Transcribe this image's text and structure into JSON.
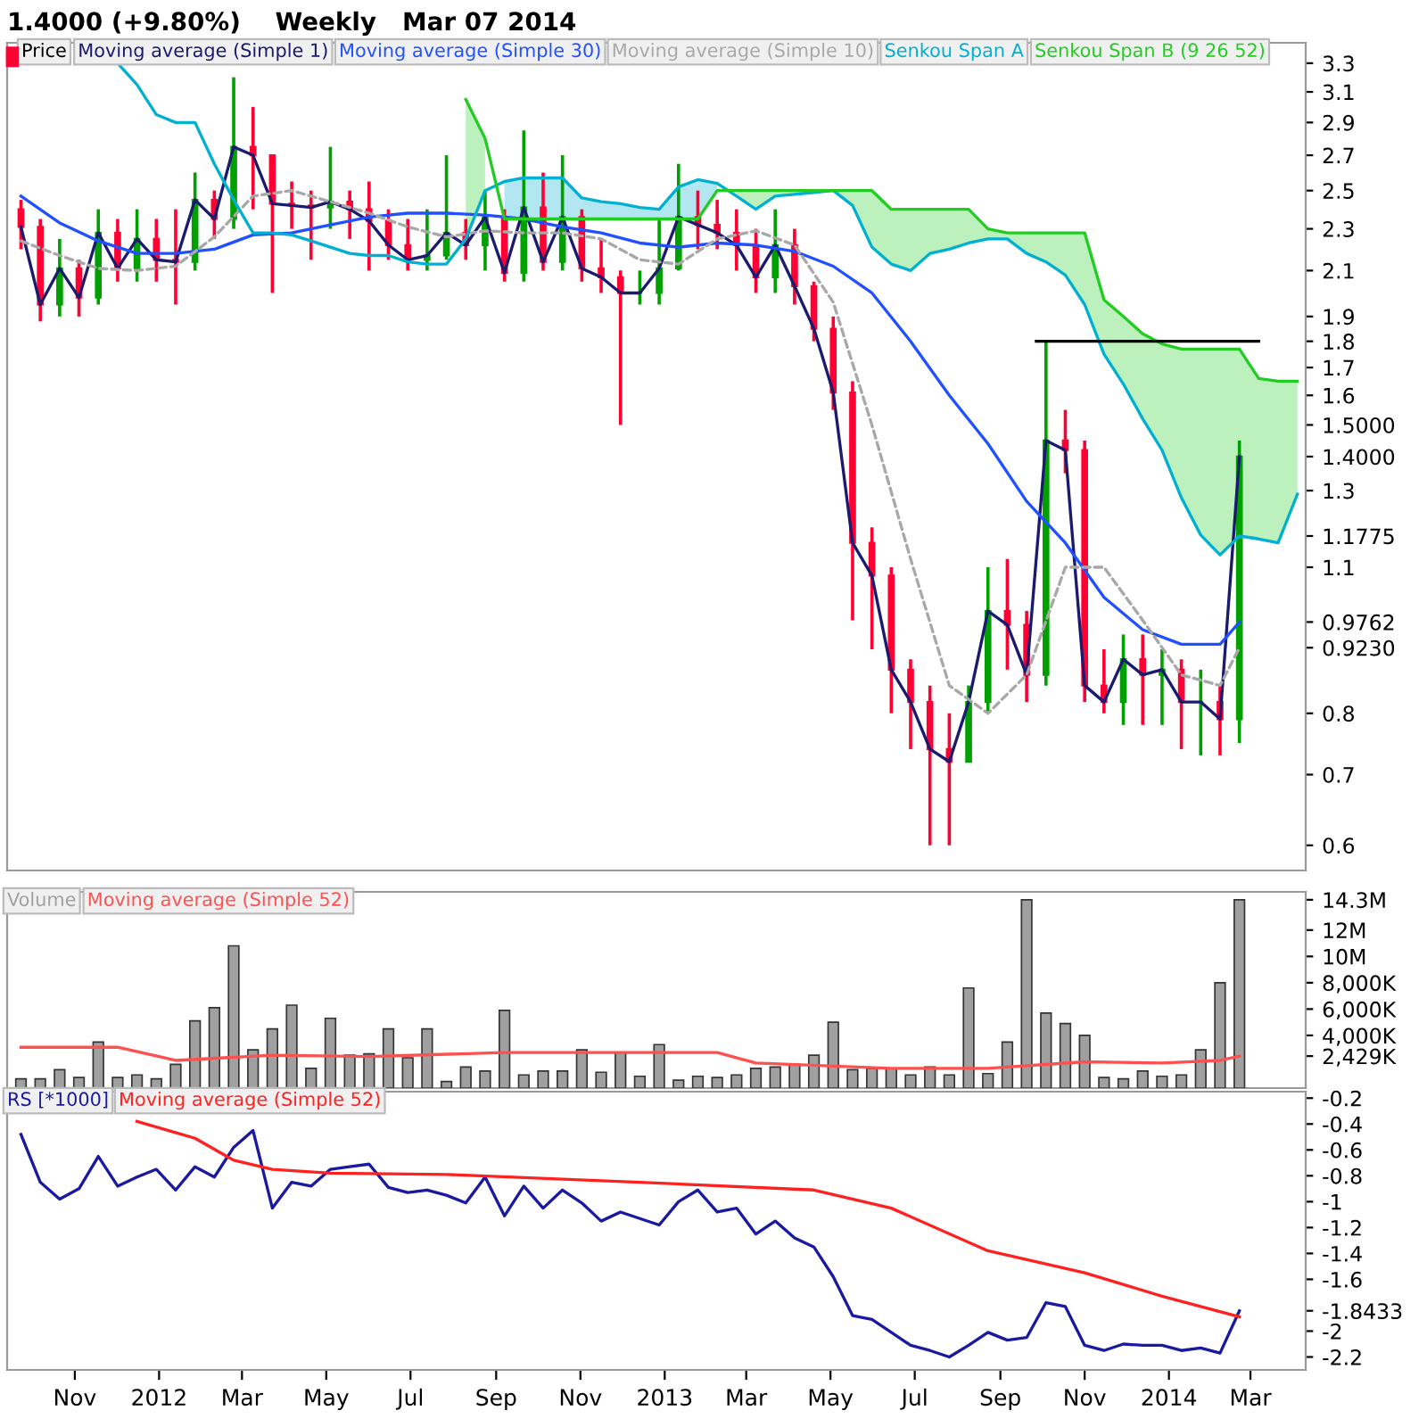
{
  "chart_data": [
    {
      "type": "candlestick",
      "title": "1.4000 (+9.80%)    Weekly   Mar 07 2014",
      "log": true,
      "legend": "top left",
      "tick_labels": "y",
      "x": [
        "2011-10-07",
        "2011-10-21",
        "2011-11-04",
        "2011-11-18",
        "2011-12-02",
        "2011-12-16",
        "2011-12-30",
        "2012-01-13",
        "2012-01-27",
        "2012-02-10",
        "2012-02-24",
        "2012-03-09",
        "2012-03-23",
        "2012-04-06",
        "2012-04-20",
        "2012-05-04",
        "2012-05-18",
        "2012-06-01",
        "2012-06-15",
        "2012-06-29",
        "2012-07-13",
        "2012-07-27",
        "2012-08-10",
        "2012-08-24",
        "2012-09-07",
        "2012-09-21",
        "2012-10-05",
        "2012-10-19",
        "2012-11-02",
        "2012-11-16",
        "2012-11-30",
        "2012-12-14",
        "2012-12-28",
        "2013-01-11",
        "2013-01-25",
        "2013-02-08",
        "2013-02-22",
        "2013-03-08",
        "2013-03-22",
        "2013-04-05",
        "2013-04-19",
        "2013-05-03",
        "2013-05-17",
        "2013-05-31",
        "2013-06-14",
        "2013-06-28",
        "2013-07-12",
        "2013-07-26",
        "2013-08-09",
        "2013-08-23",
        "2013-09-06",
        "2013-09-20",
        "2013-10-04",
        "2013-10-18",
        "2013-11-01",
        "2013-11-15",
        "2013-11-29",
        "2013-12-13",
        "2013-12-27",
        "2014-01-10",
        "2014-01-24",
        "2014-02-07",
        "2014-02-21",
        "2014-03-07"
      ],
      "series": [
        {
          "name": "Price",
          "type": "candlestick",
          "ohlc": [
            [
              2.4,
              2.45,
              2.2,
              2.31
            ],
            [
              2.31,
              2.35,
              1.88,
              1.95
            ],
            [
              1.95,
              2.25,
              1.9,
              2.11
            ],
            [
              2.11,
              2.15,
              1.9,
              1.98
            ],
            [
              1.98,
              2.4,
              1.95,
              2.28
            ],
            [
              2.28,
              2.35,
              2.05,
              2.11
            ],
            [
              2.11,
              2.4,
              2.05,
              2.25
            ],
            [
              2.25,
              2.35,
              2.05,
              2.15
            ],
            [
              2.15,
              2.4,
              1.95,
              2.14
            ],
            [
              2.14,
              2.6,
              2.1,
              2.45
            ],
            [
              2.45,
              2.5,
              2.25,
              2.35
            ],
            [
              2.35,
              3.2,
              2.3,
              2.75
            ],
            [
              2.75,
              3.0,
              2.4,
              2.7
            ],
            [
              2.7,
              2.7,
              2.0,
              2.43
            ],
            [
              2.43,
              2.55,
              2.3,
              2.42
            ],
            [
              2.42,
              2.5,
              2.15,
              2.41
            ],
            [
              2.41,
              2.75,
              2.3,
              2.44
            ],
            [
              2.44,
              2.5,
              2.25,
              2.4
            ],
            [
              2.4,
              2.55,
              2.1,
              2.34
            ],
            [
              2.34,
              2.4,
              2.15,
              2.22
            ],
            [
              2.22,
              2.35,
              2.1,
              2.15
            ],
            [
              2.15,
              2.4,
              2.1,
              2.17
            ],
            [
              2.17,
              2.7,
              2.15,
              2.28
            ],
            [
              2.28,
              2.35,
              2.15,
              2.22
            ],
            [
              2.22,
              2.5,
              2.1,
              2.36
            ],
            [
              2.36,
              2.4,
              2.05,
              2.09
            ],
            [
              2.09,
              2.85,
              2.05,
              2.41
            ],
            [
              2.41,
              2.6,
              2.1,
              2.14
            ],
            [
              2.14,
              2.7,
              2.1,
              2.36
            ],
            [
              2.36,
              2.4,
              2.05,
              2.11
            ],
            [
              2.11,
              2.25,
              2.0,
              2.07
            ],
            [
              2.07,
              2.1,
              1.5,
              2.0
            ],
            [
              2.0,
              2.1,
              1.95,
              2.0
            ],
            [
              2.0,
              2.35,
              1.95,
              2.11
            ],
            [
              2.11,
              2.65,
              2.1,
              2.36
            ],
            [
              2.36,
              2.5,
              2.2,
              2.32
            ],
            [
              2.32,
              2.45,
              2.2,
              2.28
            ],
            [
              2.28,
              2.4,
              2.1,
              2.22
            ],
            [
              2.22,
              2.3,
              2.0,
              2.07
            ],
            [
              2.07,
              2.4,
              2.0,
              2.22
            ],
            [
              2.22,
              2.3,
              1.95,
              2.03
            ],
            [
              2.03,
              2.05,
              1.8,
              1.85
            ],
            [
              1.85,
              1.9,
              1.55,
              1.61
            ],
            [
              1.61,
              1.65,
              0.98,
              1.16
            ],
            [
              1.16,
              1.2,
              0.92,
              1.08
            ],
            [
              1.08,
              1.1,
              0.8,
              0.88
            ],
            [
              0.88,
              0.9,
              0.74,
              0.82
            ],
            [
              0.82,
              0.85,
              0.6,
              0.74
            ],
            [
              0.74,
              0.8,
              0.6,
              0.72
            ],
            [
              0.72,
              0.85,
              0.72,
              0.82
            ],
            [
              0.82,
              1.1,
              0.8,
              1.0
            ],
            [
              1.0,
              1.12,
              0.88,
              0.97
            ],
            [
              0.97,
              1.0,
              0.82,
              0.87
            ],
            [
              0.87,
              1.8,
              0.85,
              1.45
            ],
            [
              1.45,
              1.55,
              1.35,
              1.42
            ],
            [
              1.42,
              1.45,
              0.82,
              0.85
            ],
            [
              0.85,
              0.92,
              0.8,
              0.82
            ],
            [
              0.82,
              0.95,
              0.78,
              0.9
            ],
            [
              0.9,
              0.95,
              0.78,
              0.87
            ],
            [
              0.87,
              0.92,
              0.78,
              0.88
            ],
            [
              0.88,
              0.9,
              0.74,
              0.82
            ],
            [
              0.82,
              0.88,
              0.73,
              0.82
            ],
            [
              0.82,
              0.85,
              0.73,
              0.79
            ],
            [
              0.79,
              1.45,
              0.75,
              1.4
            ]
          ],
          "colors": [
            "#ff0033",
            "#ff0033",
            "#00a000",
            "#ff0033",
            "#00a000",
            "#ff0033",
            "#00a000",
            "#ff0033",
            "#ff0033",
            "#00a000",
            "#ff0033",
            "#00a000",
            "#ff0033",
            "#ff0033",
            "#ff0033",
            "#ff0033",
            "#00a000",
            "#ff0033",
            "#ff0033",
            "#ff0033",
            "#ff0033",
            "#00a000",
            "#00a000",
            "#ff0033",
            "#00a000",
            "#ff0033",
            "#00a000",
            "#ff0033",
            "#00a000",
            "#ff0033",
            "#ff0033",
            "#ff0033",
            "#00a000",
            "#00a000",
            "#00a000",
            "#ff0033",
            "#ff0033",
            "#ff0033",
            "#ff0033",
            "#00a000",
            "#ff0033",
            "#ff0033",
            "#ff0033",
            "#ff0033",
            "#ff0033",
            "#ff0033",
            "#ff0033",
            "#ff0033",
            "#ff0033",
            "#00a000",
            "#00a000",
            "#ff0033",
            "#ff0033",
            "#00a000",
            "#ff0033",
            "#ff0033",
            "#ff0033",
            "#00a000",
            "#ff0033",
            "#00a000",
            "#ff0033",
            "#00a000",
            "#ff0033",
            "#00a000"
          ]
        },
        {
          "name": "Moving average (Simple 1)",
          "type": "line",
          "color": "#1a1a6e",
          "values": [
            2.31,
            1.95,
            2.11,
            1.98,
            2.28,
            2.11,
            2.25,
            2.15,
            2.14,
            2.45,
            2.35,
            2.75,
            2.7,
            2.43,
            2.42,
            2.41,
            2.44,
            2.4,
            2.34,
            2.22,
            2.15,
            2.17,
            2.28,
            2.22,
            2.36,
            2.09,
            2.41,
            2.14,
            2.36,
            2.11,
            2.07,
            2.0,
            2.0,
            2.11,
            2.36,
            2.32,
            2.28,
            2.22,
            2.07,
            2.22,
            2.03,
            1.85,
            1.61,
            1.16,
            1.08,
            0.88,
            0.82,
            0.74,
            0.72,
            0.82,
            1.0,
            0.97,
            0.87,
            1.45,
            1.42,
            0.85,
            0.82,
            0.9,
            0.87,
            0.88,
            0.82,
            0.82,
            0.79,
            1.4
          ]
        },
        {
          "name": "Moving average (Simple 30)",
          "type": "line",
          "color": "#2050ff",
          "x": [
            "2011-10-07",
            "2011-11-04",
            "2011-12-02",
            "2011-12-30",
            "2012-01-27",
            "2012-02-24",
            "2012-03-23",
            "2012-04-20",
            "2012-05-18",
            "2012-06-15",
            "2012-07-13",
            "2012-08-10",
            "2012-09-07",
            "2012-10-05",
            "2012-11-02",
            "2012-11-30",
            "2012-12-28",
            "2013-01-25",
            "2013-02-22",
            "2013-03-22",
            "2013-04-19",
            "2013-05-17",
            "2013-06-14",
            "2013-07-12",
            "2013-08-09",
            "2013-09-06",
            "2013-10-04",
            "2013-11-01",
            "2013-11-29",
            "2013-12-27",
            "2014-01-24",
            "2014-02-21",
            "2014-03-07"
          ],
          "values": [
            2.47,
            2.33,
            2.24,
            2.18,
            2.18,
            2.2,
            2.27,
            2.28,
            2.32,
            2.36,
            2.38,
            2.38,
            2.37,
            2.35,
            2.31,
            2.28,
            2.23,
            2.21,
            2.23,
            2.22,
            2.19,
            2.12,
            2.0,
            1.8,
            1.6,
            1.44,
            1.27,
            1.16,
            1.03,
            0.96,
            0.93,
            0.93,
            0.976
          ]
        },
        {
          "name": "Moving average (Simple 10)",
          "type": "line",
          "color": "#a8a8a8",
          "line_style": "dashed",
          "x": [
            "2011-10-07",
            "2011-11-04",
            "2011-12-02",
            "2011-12-30",
            "2012-01-27",
            "2012-02-24",
            "2012-03-23",
            "2012-04-20",
            "2012-05-18",
            "2012-06-15",
            "2012-07-13",
            "2012-08-10",
            "2012-09-07",
            "2012-10-05",
            "2012-11-02",
            "2012-11-30",
            "2012-12-28",
            "2013-01-25",
            "2013-02-22",
            "2013-03-22",
            "2013-04-19",
            "2013-05-17",
            "2013-06-14",
            "2013-07-12",
            "2013-08-09",
            "2013-09-06",
            "2013-10-04",
            "2013-11-01",
            "2013-11-29",
            "2013-12-27",
            "2014-01-24",
            "2014-02-21",
            "2014-03-07"
          ],
          "values": [
            2.24,
            2.17,
            2.11,
            2.1,
            2.12,
            2.26,
            2.47,
            2.5,
            2.44,
            2.38,
            2.31,
            2.26,
            2.29,
            2.28,
            2.28,
            2.25,
            2.15,
            2.13,
            2.25,
            2.29,
            2.22,
            1.96,
            1.5,
            1.12,
            0.85,
            0.8,
            0.87,
            1.1,
            1.1,
            0.98,
            0.87,
            0.85,
            0.923
          ]
        },
        {
          "name": "Senkou Span A",
          "type": "line",
          "color": "#00b0d0",
          "lower": [
            null,
            null,
            null,
            null,
            null,
            null,
            null,
            null,
            null,
            null,
            null,
            null,
            null,
            null,
            null,
            null,
            null,
            null,
            null,
            null,
            2.35,
            2.35,
            2.35,
            2.35,
            2.35,
            2.35,
            2.35,
            2.35,
            2.35,
            2.35,
            2.35,
            2.5,
            null,
            null,
            null,
            null,
            null,
            null,
            null,
            null,
            null,
            null,
            null,
            null,
            null,
            null,
            null,
            null,
            null,
            null,
            null,
            null,
            null,
            null,
            null,
            null,
            null,
            null,
            null,
            null,
            null,
            null
          ],
          "upper": [
            null,
            null,
            null,
            null,
            null,
            null,
            null,
            null,
            null,
            null,
            null,
            null,
            null,
            null,
            null,
            null,
            null,
            null,
            null,
            null,
            2.55,
            2.57,
            2.57,
            2.57,
            2.46,
            2.44,
            2.43,
            2.41,
            2.4,
            2.52,
            2.56,
            2.54,
            null,
            null,
            null,
            null,
            null,
            null,
            null,
            null,
            null,
            null,
            null,
            null,
            null,
            null,
            null,
            null,
            null,
            null,
            null,
            null,
            null,
            null,
            null,
            null,
            null,
            null,
            null,
            null,
            null,
            null
          ],
          "x": [
            "2011-12-16",
            "2011-12-30",
            "2012-01-13",
            "2012-01-27",
            "2012-02-10",
            "2012-02-24",
            "2012-03-09",
            "2012-03-23",
            "2012-04-06",
            "2012-04-20",
            "2012-05-04",
            "2012-05-18",
            "2012-06-01",
            "2012-06-15",
            "2012-06-29",
            "2012-07-13",
            "2012-07-27",
            "2012-08-10",
            "2012-08-24",
            "2012-09-07",
            "2012-09-21",
            "2012-10-05",
            "2012-10-19",
            "2012-11-02",
            "2012-11-16",
            "2012-11-30",
            "2012-12-14",
            "2012-12-28",
            "2013-01-11",
            "2013-01-25",
            "2013-02-08",
            "2013-02-22",
            "2013-03-08",
            "2013-03-22",
            "2013-04-05",
            "2013-04-19",
            "2013-05-03",
            "2013-05-17",
            "2013-05-31",
            "2013-06-14",
            "2013-06-28",
            "2013-07-12",
            "2013-07-26",
            "2013-08-09",
            "2013-08-23",
            "2013-09-06",
            "2013-09-20",
            "2013-10-04",
            "2013-10-18",
            "2013-11-01",
            "2013-11-15",
            "2013-11-29",
            "2013-12-13",
            "2013-12-27",
            "2014-01-10",
            "2014-01-24",
            "2014-02-07",
            "2014-02-21",
            "2014-03-07",
            "2014-03-21",
            "2014-04-04",
            "2014-04-18"
          ],
          "values": [
            3.3,
            3.15,
            2.95,
            2.9,
            2.9,
            2.65,
            2.45,
            2.28,
            2.28,
            2.27,
            2.24,
            2.21,
            2.18,
            2.17,
            2.17,
            2.14,
            2.13,
            2.13,
            2.25,
            2.5,
            2.55,
            2.57,
            2.57,
            2.57,
            2.46,
            2.44,
            2.43,
            2.41,
            2.4,
            2.52,
            2.56,
            2.54,
            2.47,
            2.4,
            2.47,
            2.48,
            2.49,
            2.5,
            2.42,
            2.21,
            2.13,
            2.1,
            2.18,
            2.2,
            2.23,
            2.25,
            2.25,
            2.18,
            2.14,
            2.08,
            1.95,
            1.75,
            1.64,
            1.52,
            1.42,
            1.28,
            1.18,
            1.13,
            1.1775,
            1.17,
            1.16,
            1.29
          ]
        },
        {
          "name": "Senkou Span B (9 26 52)",
          "type": "line",
          "color": "#22cc22",
          "lower": [
            2.25,
            2.5,
            null,
            null,
            null,
            null,
            null,
            null,
            null,
            null,
            null,
            null,
            null,
            null,
            2.47,
            2.4,
            2.47,
            2.48,
            2.49,
            2.5,
            2.42,
            2.21,
            2.13,
            2.1,
            2.18,
            2.2,
            2.23,
            2.25,
            2.25,
            2.18,
            2.14,
            2.08,
            1.95,
            1.75,
            1.64,
            1.52,
            1.42,
            1.28,
            1.18,
            1.13,
            1.1775,
            1.17,
            1.16,
            1.29
          ],
          "upper": [
            3.05,
            2.8,
            null,
            null,
            null,
            null,
            null,
            null,
            null,
            null,
            null,
            null,
            null,
            null,
            2.5,
            2.5,
            2.5,
            2.5,
            2.5,
            2.5,
            2.5,
            2.5,
            2.4,
            2.4,
            2.4,
            2.4,
            2.4,
            2.3,
            2.28,
            2.28,
            2.28,
            2.28,
            2.28,
            1.97,
            1.9,
            1.83,
            1.79,
            1.77,
            1.77,
            1.77,
            1.77,
            1.66,
            1.65,
            1.65
          ],
          "x": [
            "2012-08-24",
            "2012-09-07",
            "2012-09-21",
            "2012-10-05",
            "2012-10-19",
            "2012-11-02",
            "2012-11-16",
            "2012-11-30",
            "2012-12-14",
            "2012-12-28",
            "2013-01-11",
            "2013-01-25",
            "2013-02-08",
            "2013-02-22",
            "2013-03-08",
            "2013-03-22",
            "2013-04-05",
            "2013-04-19",
            "2013-05-03",
            "2013-05-17",
            "2013-05-31",
            "2013-06-14",
            "2013-06-28",
            "2013-07-12",
            "2013-07-26",
            "2013-08-09",
            "2013-08-23",
            "2013-09-06",
            "2013-09-20",
            "2013-10-04",
            "2013-10-18",
            "2013-11-01",
            "2013-11-15",
            "2013-11-29",
            "2013-12-13",
            "2013-12-27",
            "2014-01-10",
            "2014-01-24",
            "2014-02-07",
            "2014-02-21",
            "2014-03-07",
            "2014-03-21",
            "2014-04-04",
            "2014-04-18"
          ],
          "values": [
            3.05,
            2.8,
            2.35,
            2.35,
            2.35,
            2.35,
            2.35,
            2.35,
            2.35,
            2.35,
            2.35,
            2.35,
            2.35,
            2.5,
            2.5,
            2.5,
            2.5,
            2.5,
            2.5,
            2.5,
            2.5,
            2.5,
            2.4,
            2.4,
            2.4,
            2.4,
            2.4,
            2.3,
            2.28,
            2.28,
            2.28,
            2.28,
            2.28,
            1.97,
            1.9,
            1.83,
            1.79,
            1.77,
            1.77,
            1.77,
            1.77,
            1.66,
            1.65,
            1.65
          ]
        },
        {
          "type": "line",
          "color": "#000000",
          "x": [
            "2013-10-11",
            "2014-03-21"
          ],
          "values": [
            1.8,
            1.8
          ]
        }
      ],
      "xlim": [
        "2011-09-27",
        "2014-04-24"
      ],
      "ylim": [
        0.568,
        3.45
      ],
      "yticks": [
        3.3,
        3.1,
        2.9,
        2.7,
        2.5,
        2.3,
        2.1,
        1.9,
        1.8,
        1.7,
        1.6,
        {
          "value": 1.5,
          "label": "1.5000"
        },
        {
          "value": 1.4,
          "label": "1.4000"
        },
        1.3,
        {
          "value": 1.1775,
          "label": "1.1775"
        },
        1.1,
        {
          "value": 0.9762,
          "label": "0.9762"
        },
        {
          "value": 0.923,
          "label": "0.9230"
        },
        0.8,
        0.7,
        0.6
      ]
    },
    {
      "type": "bar",
      "legend": "top left",
      "tick_labels": "y",
      "x": [
        "2011-10-07",
        "2011-10-21",
        "2011-11-04",
        "2011-11-18",
        "2011-12-02",
        "2011-12-16",
        "2011-12-30",
        "2012-01-13",
        "2012-01-27",
        "2012-02-10",
        "2012-02-24",
        "2012-03-09",
        "2012-03-23",
        "2012-04-06",
        "2012-04-20",
        "2012-05-04",
        "2012-05-18",
        "2012-06-01",
        "2012-06-15",
        "2012-06-29",
        "2012-07-13",
        "2012-07-27",
        "2012-08-10",
        "2012-08-24",
        "2012-09-07",
        "2012-09-21",
        "2012-10-05",
        "2012-10-19",
        "2012-11-02",
        "2012-11-16",
        "2012-11-30",
        "2012-12-14",
        "2012-12-28",
        "2013-01-11",
        "2013-01-25",
        "2013-02-08",
        "2013-02-22",
        "2013-03-08",
        "2013-03-22",
        "2013-04-05",
        "2013-04-19",
        "2013-05-03",
        "2013-05-17",
        "2013-05-31",
        "2013-06-14",
        "2013-06-28",
        "2013-07-12",
        "2013-07-26",
        "2013-08-09",
        "2013-08-23",
        "2013-09-06",
        "2013-09-20",
        "2013-10-04",
        "2013-10-18",
        "2013-11-01",
        "2013-11-15",
        "2013-11-29",
        "2013-12-13",
        "2013-12-27",
        "2014-01-10",
        "2014-01-24",
        "2014-02-07",
        "2014-02-21",
        "2014-03-07"
      ],
      "series": [
        {
          "name": "Volume",
          "type": "bar",
          "color": "#a0a0a0",
          "values": [
            700000,
            700000,
            1400000,
            800000,
            3500000,
            800000,
            1000000,
            700000,
            1800000,
            5100000,
            6100000,
            10800000,
            2900000,
            4500000,
            6300000,
            1500000,
            5300000,
            2500000,
            2600000,
            4500000,
            2300000,
            4500000,
            500000,
            1600000,
            1300000,
            5900000,
            1000000,
            1300000,
            1300000,
            2900000,
            1200000,
            2700000,
            900000,
            3300000,
            600000,
            900000,
            800000,
            1000000,
            1500000,
            1600000,
            1800000,
            2500000,
            5000000,
            1400000,
            1500000,
            1500000,
            1000000,
            1600000,
            1000000,
            7600000,
            1100000,
            3500000,
            14300000,
            5700000,
            4900000,
            4000000,
            800000,
            700000,
            1300000,
            900000,
            1000000,
            2900000,
            8000000,
            14300000
          ]
        },
        {
          "name": "Moving average (Simple 52)",
          "type": "line",
          "color": "#ff5050",
          "x": [
            "2011-10-07",
            "2011-12-16",
            "2012-01-27",
            "2012-04-06",
            "2012-06-15",
            "2012-09-21",
            "2013-02-22",
            "2013-03-22",
            "2013-06-28",
            "2013-09-06",
            "2013-11-15",
            "2014-01-10",
            "2014-02-21",
            "2014-03-07"
          ],
          "values": [
            3100000,
            3100000,
            2100000,
            2500000,
            2400000,
            2700000,
            2700000,
            1900000,
            1500000,
            1500000,
            2000000,
            1900000,
            2100000,
            2429000
          ]
        }
      ],
      "xlim": [
        "2011-09-27",
        "2014-04-24"
      ],
      "ylim": [
        0,
        14900000
      ],
      "yticks": [
        {
          "value": 14300000,
          "label": "14.3M"
        },
        {
          "value": 12000000,
          "label": "12M"
        },
        {
          "value": 10000000,
          "label": "10M"
        },
        {
          "value": 8000000,
          "label": "8,000K"
        },
        {
          "value": 6000000,
          "label": "6,000K"
        },
        {
          "value": 4000000,
          "label": "4,000K"
        },
        {
          "value": 2429000,
          "label": "2,429K"
        }
      ]
    },
    {
      "type": "line",
      "legend": "top left",
      "x": [
        "2011-10-07",
        "2011-10-21",
        "2011-11-04",
        "2011-11-18",
        "2011-12-02",
        "2011-12-16",
        "2011-12-30",
        "2012-01-13",
        "2012-01-27",
        "2012-02-10",
        "2012-02-24",
        "2012-03-09",
        "2012-03-23",
        "2012-04-06",
        "2012-04-20",
        "2012-05-04",
        "2012-05-18",
        "2012-06-01",
        "2012-06-15",
        "2012-06-29",
        "2012-07-13",
        "2012-07-27",
        "2012-08-10",
        "2012-08-24",
        "2012-09-07",
        "2012-09-21",
        "2012-10-05",
        "2012-10-19",
        "2012-11-02",
        "2012-11-16",
        "2012-11-30",
        "2012-12-14",
        "2012-12-28",
        "2013-01-11",
        "2013-01-25",
        "2013-02-08",
        "2013-02-22",
        "2013-03-08",
        "2013-03-22",
        "2013-04-05",
        "2013-04-19",
        "2013-05-03",
        "2013-05-17",
        "2013-05-31",
        "2013-06-14",
        "2013-06-28",
        "2013-07-12",
        "2013-07-26",
        "2013-08-09",
        "2013-08-23",
        "2013-09-06",
        "2013-09-20",
        "2013-10-04",
        "2013-10-18",
        "2013-11-01",
        "2013-11-15",
        "2013-11-29",
        "2013-12-13",
        "2013-12-27",
        "2014-01-10",
        "2014-01-24",
        "2014-02-07",
        "2014-02-21",
        "2014-03-07"
      ],
      "series": [
        {
          "name": "RS [*1000]",
          "color": "#1a1aa0",
          "values": [
            -0.48,
            -0.85,
            -0.98,
            -0.9,
            -0.65,
            -0.88,
            -0.81,
            -0.75,
            -0.91,
            -0.73,
            -0.81,
            -0.58,
            -0.45,
            -1.05,
            -0.85,
            -0.88,
            -0.75,
            -0.73,
            -0.71,
            -0.89,
            -0.93,
            -0.91,
            -0.95,
            -1.01,
            -0.81,
            -1.11,
            -0.88,
            -1.05,
            -0.91,
            -1.01,
            -1.15,
            -1.08,
            -1.13,
            -1.18,
            -1.0,
            -0.91,
            -1.08,
            -1.05,
            -1.25,
            -1.15,
            -1.28,
            -1.35,
            -1.58,
            -1.88,
            -1.91,
            -2.01,
            -2.11,
            -2.15,
            -2.2,
            -2.11,
            -2.01,
            -2.07,
            -2.05,
            -1.78,
            -1.81,
            -2.11,
            -2.15,
            -2.1,
            -2.11,
            -2.11,
            -2.15,
            -2.13,
            -2.17,
            -1.8433
          ]
        },
        {
          "name": "Moving average (Simple 52)",
          "color": "#ff2020",
          "x": [
            "2011-12-30",
            "2012-02-10",
            "2012-03-09",
            "2012-04-06",
            "2012-05-18",
            "2012-08-10",
            "2012-12-28",
            "2013-05-03",
            "2013-06-28",
            "2013-09-06",
            "2013-11-15",
            "2014-01-10",
            "2014-03-07"
          ],
          "values": [
            -0.38,
            -0.51,
            -0.68,
            -0.75,
            -0.78,
            -0.79,
            -0.85,
            -0.91,
            -1.05,
            -1.38,
            -1.55,
            -1.73,
            -1.89
          ]
        }
      ],
      "xlim": [
        "2011-09-27",
        "2014-04-24"
      ],
      "xticks": [
        {
          "value": "2011-11-15",
          "label": "Nov"
        },
        {
          "value": "2012-01-15",
          "label": "2012"
        },
        {
          "value": "2012-03-15",
          "label": "Mar"
        },
        {
          "value": "2012-05-15",
          "label": "May"
        },
        {
          "value": "2012-07-15",
          "label": "Jul"
        },
        {
          "value": "2012-09-15",
          "label": "Sep"
        },
        {
          "value": "2012-11-15",
          "label": "Nov"
        },
        {
          "value": "2013-01-15",
          "label": "2013"
        },
        {
          "value": "2013-03-15",
          "label": "Mar"
        },
        {
          "value": "2013-05-15",
          "label": "May"
        },
        {
          "value": "2013-07-15",
          "label": "Jul"
        },
        {
          "value": "2013-09-15",
          "label": "Sep"
        },
        {
          "value": "2013-11-15",
          "label": "Nov"
        },
        {
          "value": "2014-01-15",
          "label": "2014"
        },
        {
          "value": "2014-03-15",
          "label": "Mar"
        }
      ],
      "ylim": [
        -2.3,
        -0.15
      ],
      "yticks": [
        -0.2,
        -0.4,
        -0.6,
        -0.8,
        -1,
        -1.2,
        -1.4,
        -1.6,
        -1.8433,
        -2,
        -2.2
      ]
    }
  ]
}
